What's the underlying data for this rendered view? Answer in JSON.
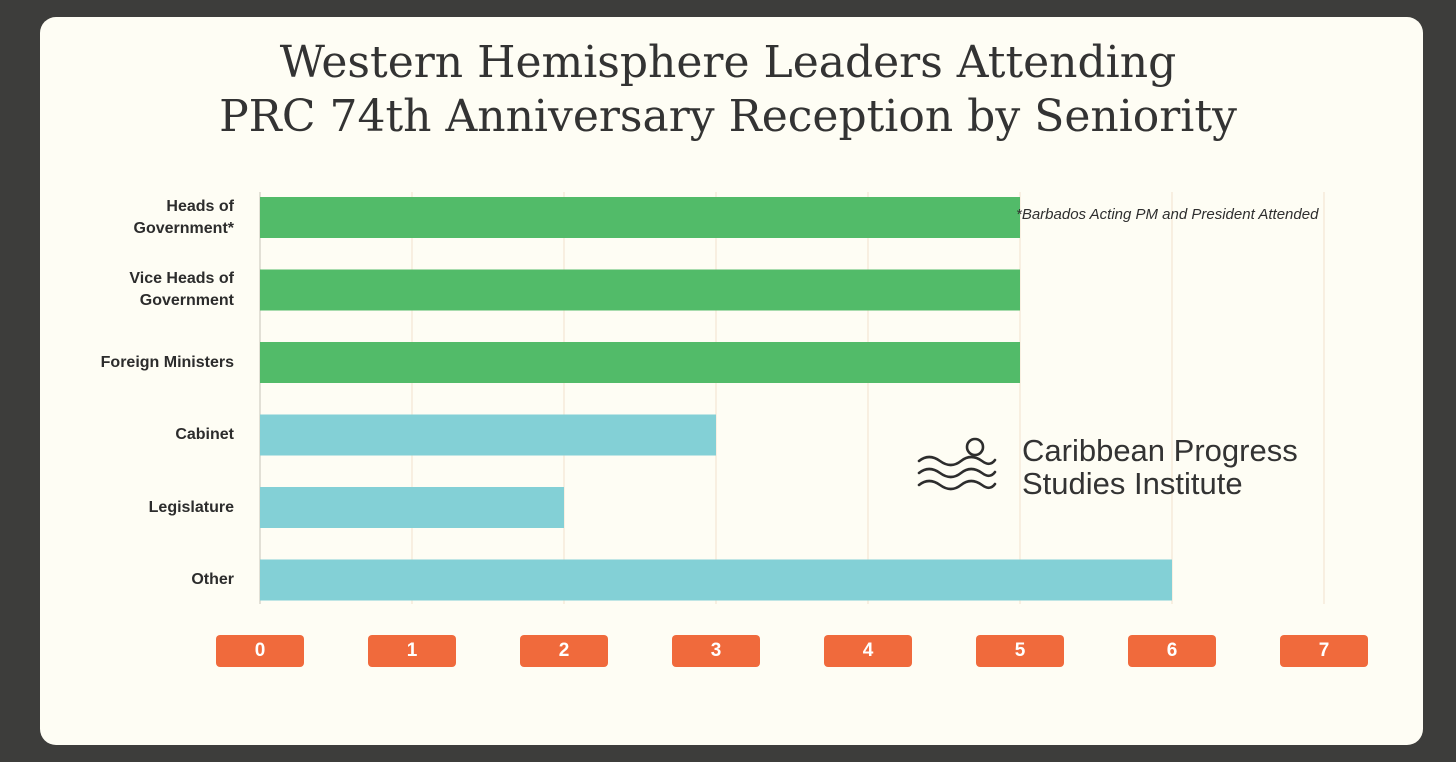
{
  "chart_data": {
    "type": "bar",
    "orientation": "horizontal",
    "title_lines": [
      "Western Hemisphere Leaders Attending",
      "PRC 74th Anniversary Reception by Seniority"
    ],
    "categories": [
      [
        "Heads of",
        "Government*"
      ],
      [
        "Vice Heads of",
        "Government"
      ],
      [
        "Foreign Ministers"
      ],
      [
        "Cabinet"
      ],
      [
        "Legislature"
      ],
      [
        "Other"
      ]
    ],
    "values": [
      5,
      5,
      5,
      3,
      2,
      6
    ],
    "bar_colors": [
      "#52bb69",
      "#52bb69",
      "#52bb69",
      "#83d0d6",
      "#83d0d6",
      "#83d0d6"
    ],
    "xlim": [
      0,
      7
    ],
    "xticks": [
      "0",
      "1",
      "2",
      "3",
      "4",
      "5",
      "6",
      "7"
    ],
    "grid": true,
    "tick_color": "#f06a3c",
    "annotation": "*Barbados Acting PM and President Attended"
  },
  "logo": {
    "name": "wave-logo-icon",
    "lines": [
      "Caribbean Progress",
      "Studies Institute"
    ]
  }
}
